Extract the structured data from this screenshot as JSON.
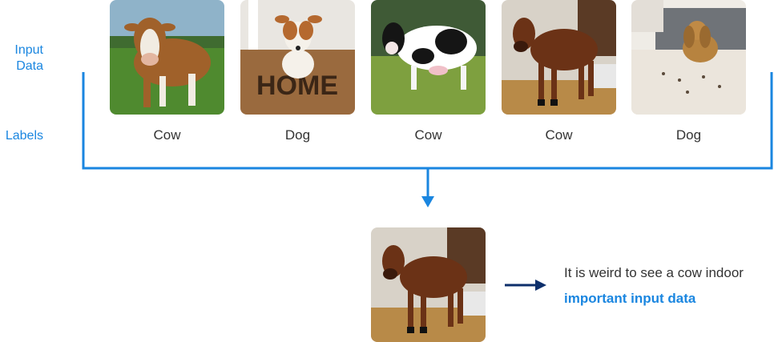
{
  "labels": {
    "input": "Input\nData",
    "labels": "Labels"
  },
  "samples": [
    {
      "label": "Cow",
      "kind": "brown-white-cow-pasture"
    },
    {
      "label": "Dog",
      "kind": "dog-on-home-doormat"
    },
    {
      "label": "Cow",
      "kind": "black-white-cow-field"
    },
    {
      "label": "Cow",
      "kind": "brown-cow-indoors"
    },
    {
      "label": "Dog",
      "kind": "spaniel-on-rug"
    }
  ],
  "doormat_text": "HOME",
  "query": {
    "kind": "brown-cow-indoors"
  },
  "note": {
    "text": "It is weird to see a cow indoor",
    "emphasis": "important input data"
  },
  "colors": {
    "accent": "#1a86e0",
    "arrow_dark": "#0d2f6b",
    "text": "#333333"
  }
}
